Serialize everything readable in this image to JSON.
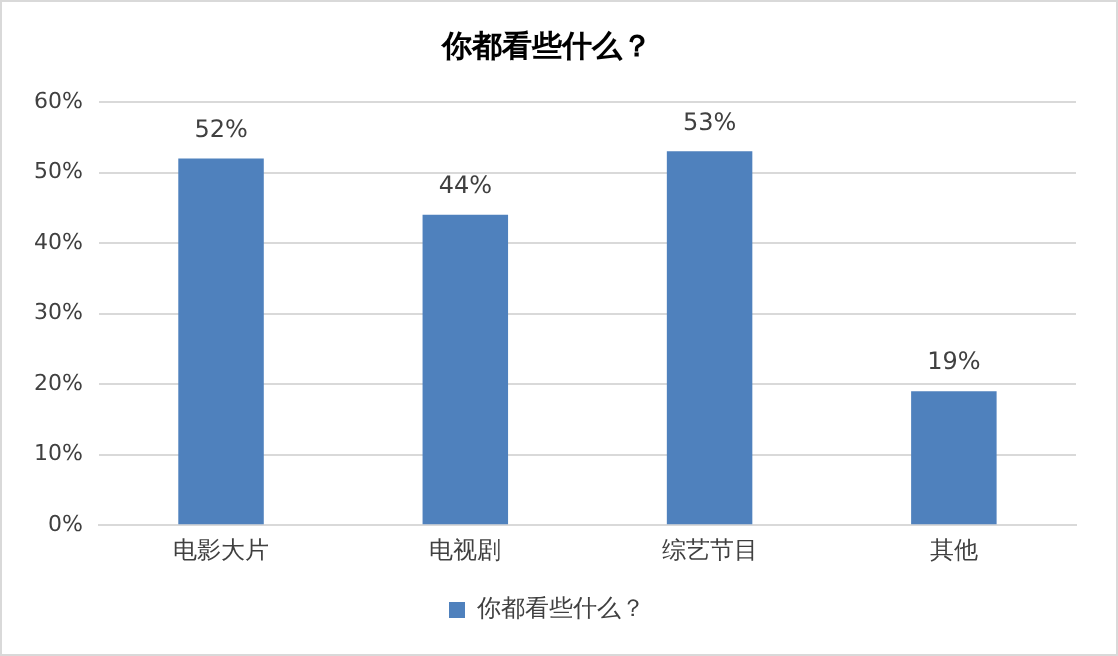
{
  "chart_data": {
    "type": "bar",
    "title": "你都看些什么？",
    "categories": [
      "电影大片",
      "电视剧",
      "综艺节目",
      "其他"
    ],
    "series": [
      {
        "name": "你都看些什么？",
        "color": "#4f81bd",
        "values": [
          52,
          44,
          53,
          19
        ],
        "value_labels": [
          "52%",
          "44%",
          "53%",
          "19%"
        ]
      }
    ],
    "ylim": [
      0,
      60
    ],
    "yticks": [
      {
        "value": 0,
        "label": "0%"
      },
      {
        "value": 10,
        "label": "10%"
      },
      {
        "value": 20,
        "label": "20%"
      },
      {
        "value": 30,
        "label": "30%"
      },
      {
        "value": 40,
        "label": "40%"
      },
      {
        "value": 50,
        "label": "50%"
      },
      {
        "value": 60,
        "label": "60%"
      }
    ],
    "grid": "y",
    "legend": "bottom"
  }
}
